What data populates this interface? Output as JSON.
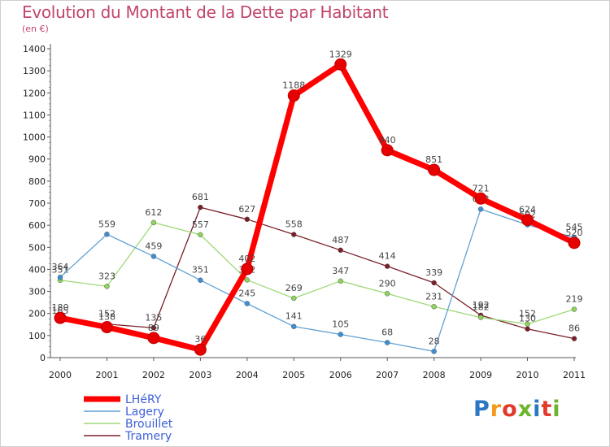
{
  "title": "Evolution du Montant de la Dette par Habitant",
  "subtitle": "(en €)",
  "logo": {
    "text": "Proxiti",
    "colors": [
      "#2a78c2",
      "#f39a1e",
      "#e23a2a",
      "#6cb52d",
      "#2a78c2",
      "#e23a2a",
      "#6cb52d"
    ]
  },
  "chart_data": {
    "type": "line",
    "x": [
      "2000",
      "2001",
      "2002",
      "2003",
      "2004",
      "2005",
      "2006",
      "2007",
      "2008",
      "2009",
      "2010",
      "2011"
    ],
    "y_ticks": [
      "0",
      "100",
      "200",
      "300",
      "400",
      "500",
      "600",
      "700",
      "800",
      "900",
      "1000",
      "1100",
      "1200",
      "1300",
      "1400"
    ],
    "ylim": [
      0,
      1400
    ],
    "grid": false,
    "legend_position": "bottom-left",
    "series": [
      {
        "name": "Tramery",
        "color": "#7a1f2a",
        "marker": "#7a1f2a",
        "width": 1.3,
        "values": [
          165,
          152,
          135,
          681,
          627,
          558,
          487,
          414,
          339,
          192,
          130,
          86
        ],
        "labels": [
          "165",
          "152",
          "135",
          "681",
          "627",
          "558",
          "487",
          "414",
          "339",
          "192",
          "130",
          "86"
        ]
      },
      {
        "name": "Brouillet",
        "color": "#9ed978",
        "marker": "#8ed35a",
        "width": 1.3,
        "values": [
          351,
          323,
          612,
          557,
          352,
          269,
          347,
          290,
          231,
          182,
          152,
          219
        ],
        "labels": [
          "351",
          "323",
          "612",
          "557",
          "352",
          "269",
          "347",
          "290",
          "231",
          "182",
          "152",
          "219"
        ]
      },
      {
        "name": "Lagery",
        "color": "#5fa0d4",
        "marker": "#3c8fd6",
        "width": 1.3,
        "values": [
          364,
          559,
          459,
          351,
          245,
          141,
          105,
          68,
          28,
          673,
          602,
          545
        ],
        "labels": [
          "364",
          "559",
          "459",
          "351",
          "245",
          "141",
          "105",
          "68",
          "28",
          "673",
          "602",
          "545"
        ]
      },
      {
        "name": "LHéRY",
        "color": "#ff0000",
        "marker": "#e60000",
        "width": 7,
        "values": [
          180,
          138,
          89,
          36,
          402,
          1188,
          1329,
          940,
          851,
          721,
          624,
          520
        ],
        "labels": [
          "180",
          "138",
          "89",
          "36",
          "402",
          "1188",
          "1329",
          "940",
          "851",
          "721",
          "624",
          "520"
        ]
      }
    ],
    "legend": [
      {
        "name": "LHéRY",
        "color": "#ff0000",
        "width": 7
      },
      {
        "name": "Lagery",
        "color": "#5fa0d4",
        "width": 1.5
      },
      {
        "name": "Brouillet",
        "color": "#9ed978",
        "width": 1.5
      },
      {
        "name": "Tramery",
        "color": "#7a1f2a",
        "width": 1.5
      }
    ]
  }
}
